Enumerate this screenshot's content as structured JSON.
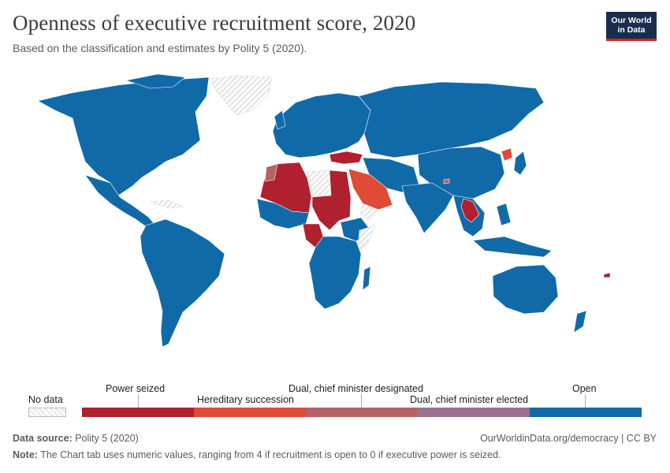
{
  "header": {
    "title": "Openness of executive recruitment score, 2020",
    "subtitle": "Based on the classification and estimates by Polity 5 (2020).",
    "logo_line1": "Our World",
    "logo_line2": "in Data"
  },
  "colors": {
    "power_seized": "#b0202f",
    "hereditary_succession": "#e04a36",
    "dual_designated": "#b76266",
    "dual_elected": "#9a7190",
    "open": "#116aa8",
    "no_data": "#e6e6e6",
    "ocean": "#ffffff"
  },
  "legend": {
    "no_data": "No data",
    "categories": [
      {
        "label": "Power seized",
        "value": 0
      },
      {
        "label": "Hereditary succession",
        "value": 1
      },
      {
        "label": "Dual, chief minister designated",
        "value": 2
      },
      {
        "label": "Dual, chief minister elected",
        "value": 3
      },
      {
        "label": "Open",
        "value": 4
      }
    ]
  },
  "footer": {
    "source_label": "Data source:",
    "source_value": "Polity 5 (2020)",
    "note_label": "Note:",
    "note_value": "The Chart tab uses numeric values, ranging from 4 if recruitment is open to 0 if executive power is seized.",
    "url": "OurWorldinData.org/democracy | CC BY"
  },
  "regions": {
    "power_seized": [
      "Algeria",
      "Mali",
      "Burkina Faso",
      "Niger",
      "Chad",
      "Sudan",
      "Egypt",
      "Eritrea",
      "Central African Republic",
      "Cameroon",
      "Congo",
      "Gabon",
      "Equatorial Guinea",
      "Rwanda",
      "Burundi",
      "Turkey",
      "Thailand",
      "Cambodia",
      "Laos",
      "South Sudan",
      "Fiji"
    ],
    "hereditary_succession": [
      "Saudi Arabia",
      "Oman",
      "United Arab Emirates",
      "Qatar",
      "Kuwait",
      "Bahrain",
      "North Korea",
      "Jordan",
      "Eswatini"
    ],
    "dual_designated": [
      "Morocco",
      "Bhutan"
    ],
    "open": [
      "United States",
      "Canada",
      "Mexico",
      "Brazil",
      "Argentina",
      "Russia",
      "China",
      "India",
      "Australia",
      "Europe",
      "Southern Africa"
    ],
    "no_data": [
      "Greenland",
      "Libya",
      "Western Sahara",
      "Yemen",
      "Somalia",
      "Caribbean islands"
    ]
  }
}
